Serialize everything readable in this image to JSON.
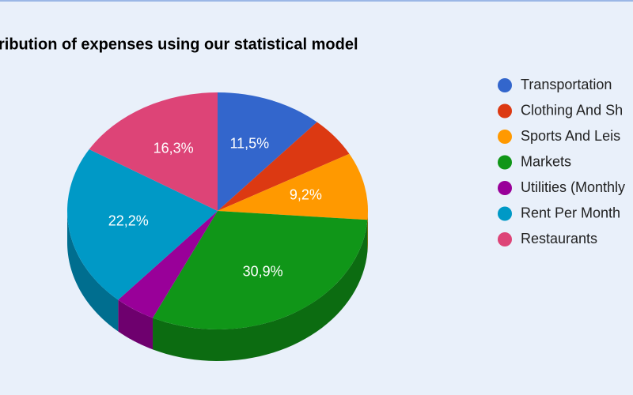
{
  "chart_data": {
    "type": "pie3d",
    "title": "ribution of expenses using our statistical model",
    "categories": [
      "Transportation",
      "Clothing And Sh",
      "Sports And Leis",
      "Markets",
      "Utilities (Monthly",
      "Rent Per Month",
      "Restaurants"
    ],
    "values": [
      11.5,
      5.5,
      9.2,
      30.9,
      4.4,
      22.2,
      16.3
    ],
    "value_labels": [
      "11,5%",
      null,
      "9,2%",
      "30,9%",
      null,
      "22,2%",
      "16,3%"
    ],
    "colors": [
      "#3366cc",
      "#dc3912",
      "#ff9900",
      "#109618",
      "#990099",
      "#0099c6",
      "#dd4477"
    ],
    "legend": "right"
  }
}
